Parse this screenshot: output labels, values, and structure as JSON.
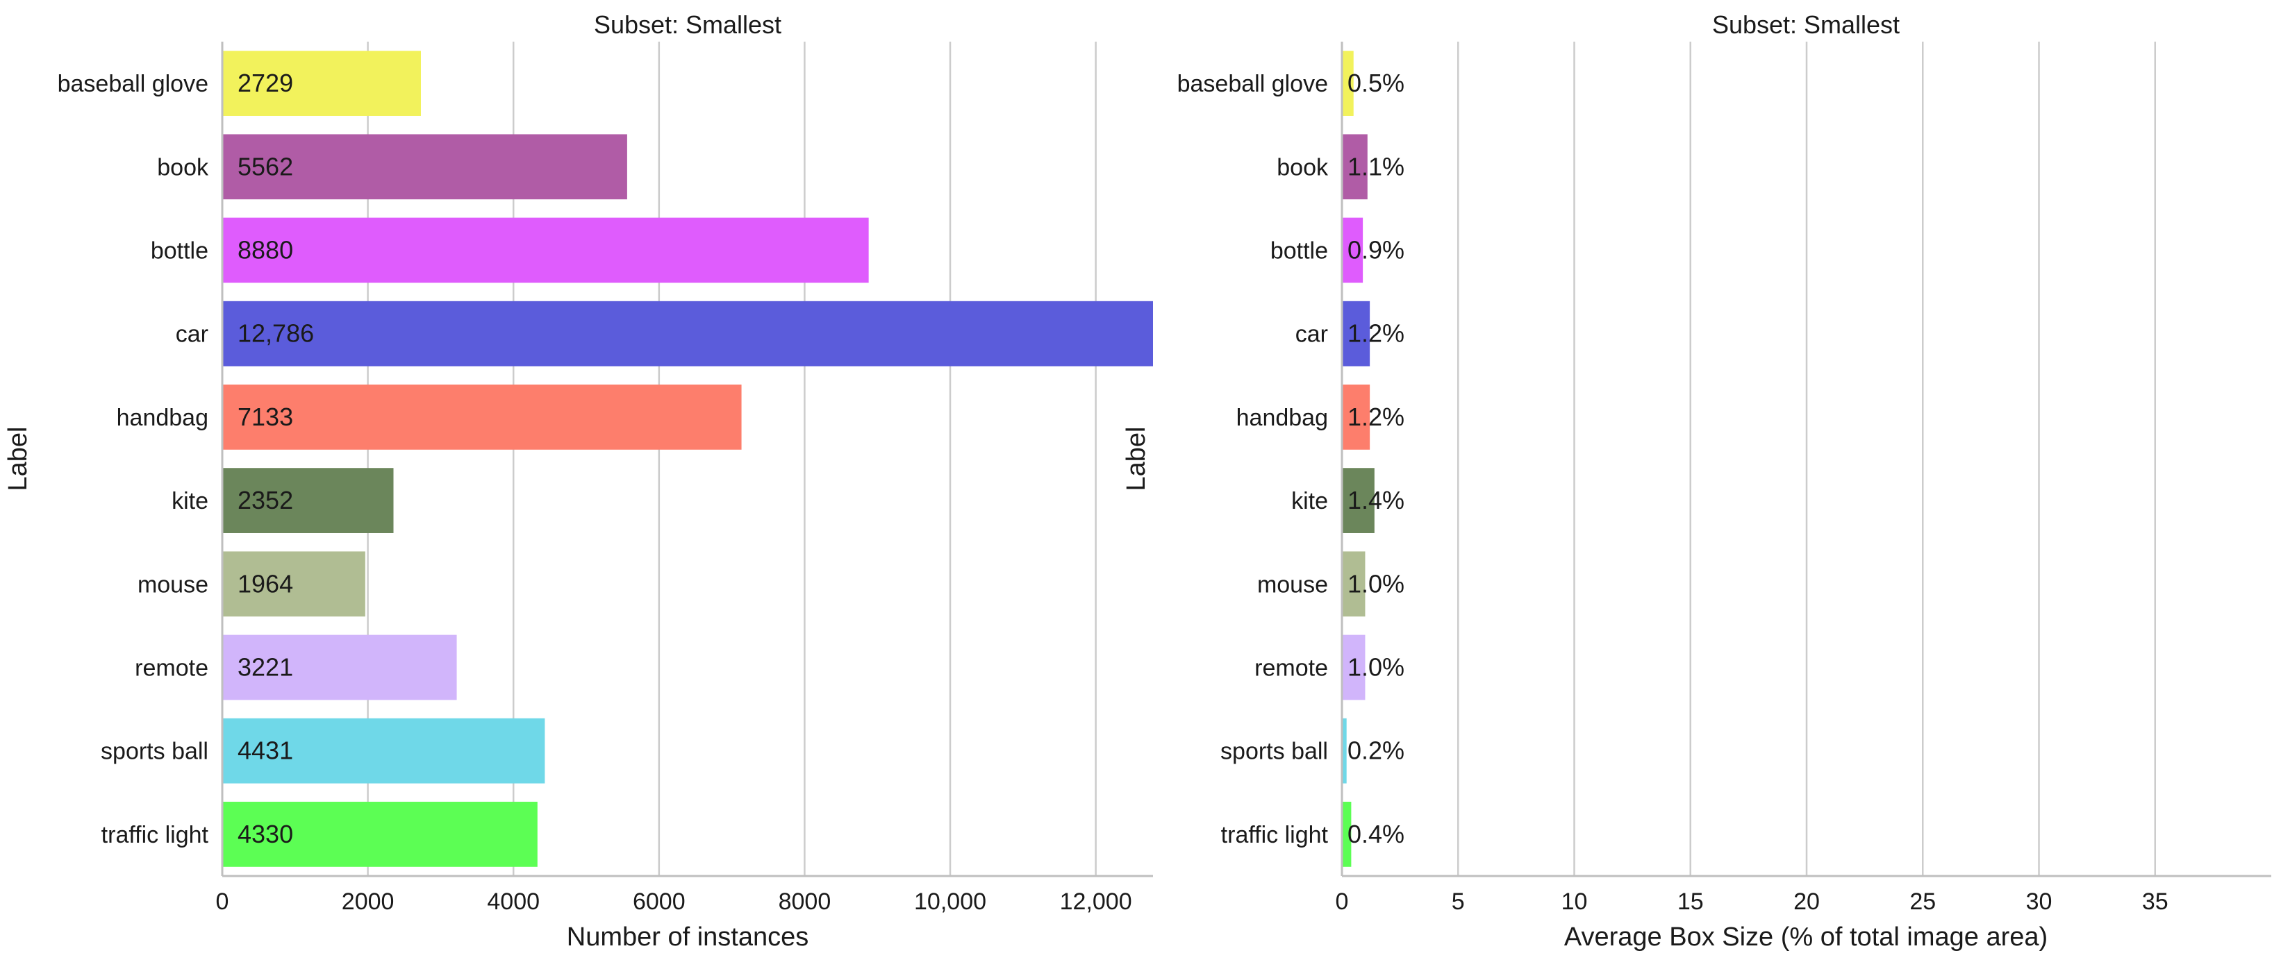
{
  "chart_data": [
    {
      "type": "bar",
      "orientation": "horizontal",
      "title": "Subset: Smallest",
      "xlabel": "Number of instances",
      "ylabel": "Label",
      "categories": [
        "baseball glove",
        "book",
        "bottle",
        "car",
        "handbag",
        "kite",
        "mouse",
        "remote",
        "sports ball",
        "traffic light"
      ],
      "values": [
        2729,
        5562,
        8880,
        12786,
        7133,
        2352,
        1964,
        3221,
        4431,
        4330
      ],
      "value_labels": [
        "2729",
        "5562",
        "8880",
        "12,786",
        "7133",
        "2352",
        "1964",
        "3221",
        "4431",
        "4330"
      ],
      "colors": [
        "#f2f25c",
        "#b05ca6",
        "#df5cfd",
        "#5b5cdb",
        "#fd7e6c",
        "#6b865b",
        "#b0bd93",
        "#d1b5fb",
        "#6fd8e8",
        "#5cfe54"
      ],
      "xlim": [
        0,
        12786
      ],
      "xticks": [
        0,
        2000,
        4000,
        6000,
        8000,
        10000,
        12000
      ],
      "xtick_labels": [
        "0",
        "2000",
        "4000",
        "6000",
        "8000",
        "10,000",
        "12,000"
      ],
      "grid": "vertical"
    },
    {
      "type": "bar",
      "orientation": "horizontal",
      "title": "Subset: Smallest",
      "xlabel": "Average Box Size (% of total image area)",
      "ylabel": "Label",
      "categories": [
        "baseball glove",
        "book",
        "bottle",
        "car",
        "handbag",
        "kite",
        "mouse",
        "remote",
        "sports ball",
        "traffic light"
      ],
      "values": [
        0.5,
        1.1,
        0.9,
        1.2,
        1.2,
        1.4,
        1.0,
        1.0,
        0.2,
        0.4
      ],
      "value_labels": [
        "0.5%",
        "1.1%",
        "0.9%",
        "1.2%",
        "1.2%",
        "1.4%",
        "1.0%",
        "1.0%",
        "0.2%",
        "0.4%"
      ],
      "colors": [
        "#f2f25c",
        "#b05ca6",
        "#df5cfd",
        "#5b5cdb",
        "#fd7e6c",
        "#6b865b",
        "#b0bd93",
        "#d1b5fb",
        "#6fd8e8",
        "#5cfe54"
      ],
      "xlim": [
        0,
        40
      ],
      "xticks": [
        0,
        5,
        10,
        15,
        20,
        25,
        30,
        35
      ],
      "xtick_labels": [
        "0",
        "5",
        "10",
        "15",
        "20",
        "25",
        "30",
        "35"
      ],
      "grid": "vertical"
    }
  ]
}
